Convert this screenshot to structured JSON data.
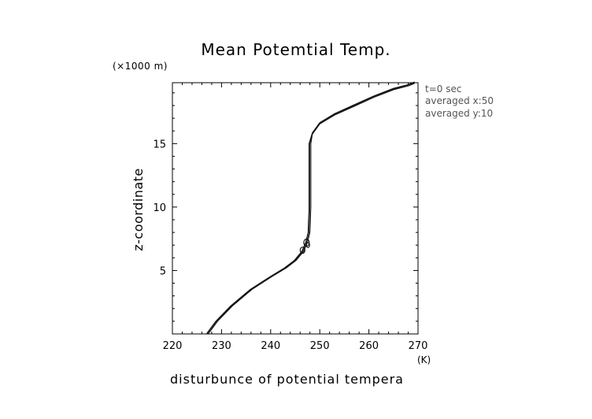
{
  "chart_data": {
    "type": "line",
    "title": "Mean Potemtial Temp.",
    "xlabel": "disturbunce of potential tempera",
    "ylabel": "z-coordinate",
    "x_unit": "(K)",
    "y_unit": "(×1000 m)",
    "xlim": [
      220,
      270
    ],
    "ylim": [
      0,
      19.8
    ],
    "x_ticks": [
      220,
      230,
      240,
      250,
      260,
      270
    ],
    "y_ticks": [
      5,
      10,
      15
    ],
    "grid": false,
    "annotations": [
      "t=0 sec",
      "averaged  x:50",
      "averaged  y:10"
    ],
    "series": [
      {
        "values": [
          [
            227.1,
            0
          ],
          [
            229,
            1.0
          ],
          [
            232,
            2.2
          ],
          [
            236,
            3.5
          ],
          [
            240,
            4.5
          ],
          [
            243,
            5.2
          ],
          [
            245,
            5.8
          ],
          [
            246.5,
            6.5
          ],
          [
            247.3,
            7.2
          ],
          [
            247.8,
            8.0
          ],
          [
            248.0,
            10.0
          ],
          [
            248.0,
            13.0
          ],
          [
            248.0,
            15.0
          ],
          [
            248.5,
            15.8
          ],
          [
            250,
            16.6
          ],
          [
            253,
            17.3
          ],
          [
            257,
            18.0
          ],
          [
            261,
            18.7
          ],
          [
            265,
            19.3
          ],
          [
            268,
            19.6
          ],
          [
            269.3,
            19.8
          ]
        ]
      }
    ]
  }
}
